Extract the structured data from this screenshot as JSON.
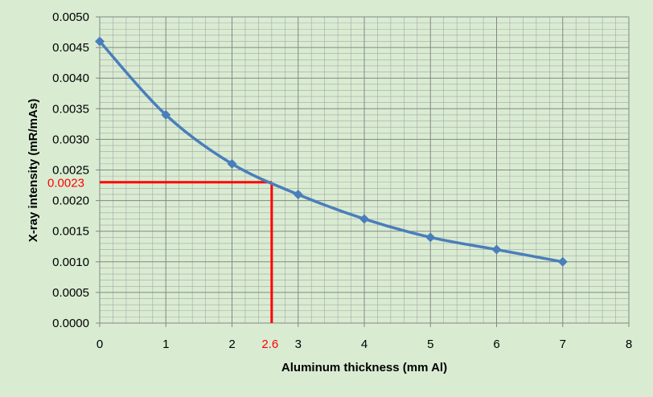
{
  "chart_data": {
    "type": "line",
    "title": "",
    "xlabel": "Aluminum thickness (mm Al)",
    "ylabel": "X-ray intensity (mR/mAs)",
    "xlim": [
      0,
      8
    ],
    "ylim": [
      0,
      0.005
    ],
    "x_ticks": [
      "0",
      "1",
      "2",
      "3",
      "4",
      "5",
      "6",
      "7",
      "8"
    ],
    "y_ticks": [
      "0.0000",
      "0.0005",
      "0.0010",
      "0.0015",
      "0.0020",
      "0.0025",
      "0.0030",
      "0.0035",
      "0.0040",
      "0.0045",
      "0.0050"
    ],
    "grid": true,
    "legend": "none",
    "series": [
      {
        "x": [
          0,
          1,
          2,
          3,
          4,
          5,
          6,
          7
        ],
        "values": [
          0.0046,
          0.0034,
          0.0026,
          0.0021,
          0.0017,
          0.0014,
          0.0012,
          0.001
        ],
        "color": "#4a7ebb",
        "marker": "diamond"
      }
    ],
    "annotation": {
      "x": 2.6,
      "y": 0.0023,
      "x_label": "2.6",
      "y_label": "0.0023",
      "color": "#ff0000"
    },
    "colors": {
      "background": "#d9ecd2",
      "plot_background": "#d9ecd2",
      "major_grid": "#868686",
      "minor_grid": "#a6a6a6"
    }
  }
}
